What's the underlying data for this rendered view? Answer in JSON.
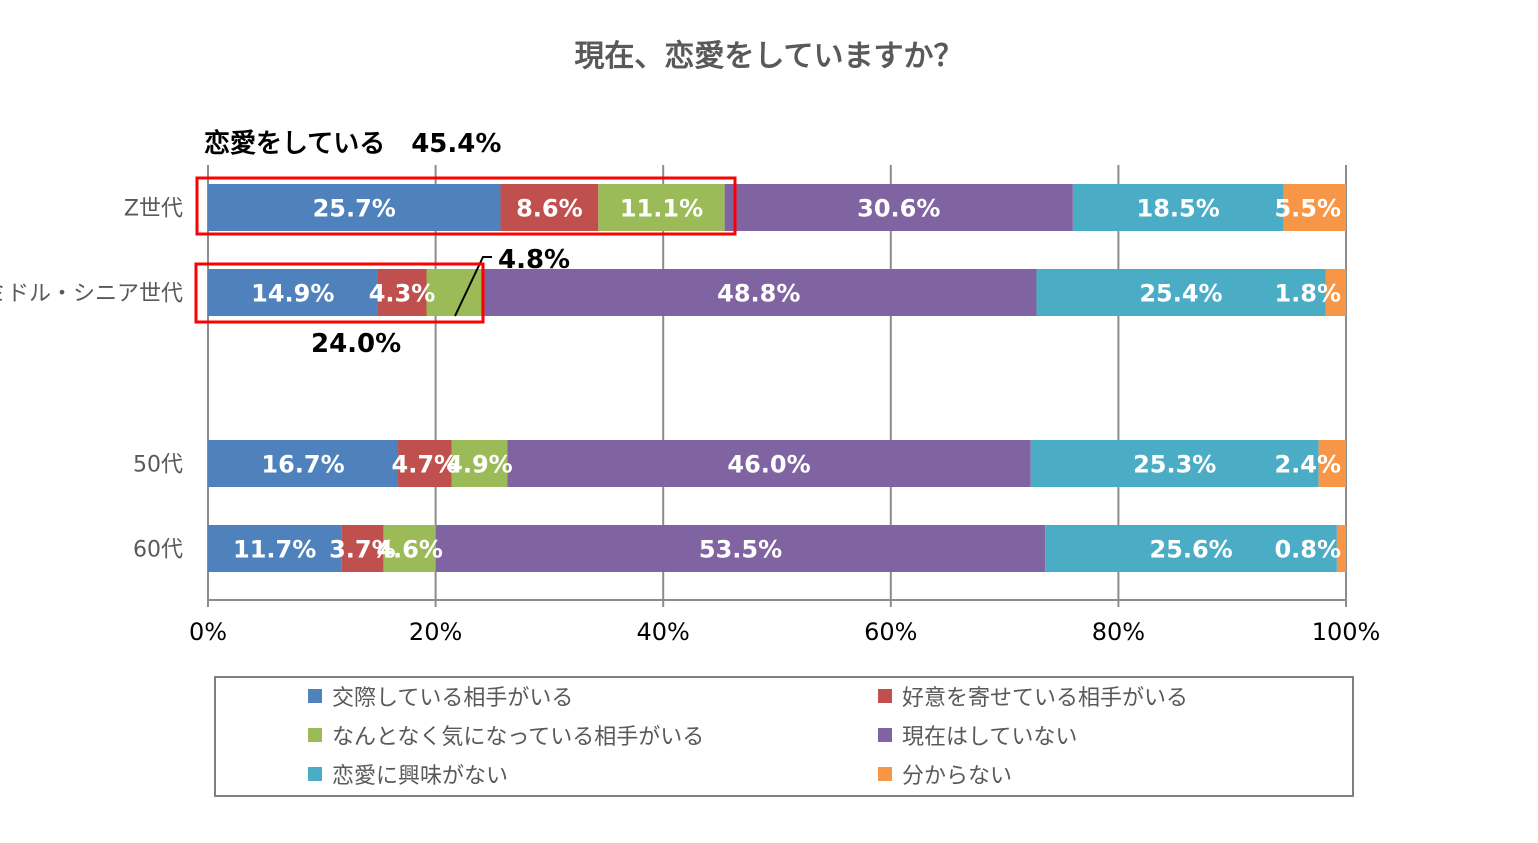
{
  "chart_data": {
    "type": "bar",
    "orientation": "horizontal",
    "stacked": "100%",
    "title": "現在、恋愛をしていますか？",
    "categories": [
      "Z世代",
      "ミドル・シニア世代",
      "50代",
      "60代"
    ],
    "series": [
      {
        "name": "交際している相手がいる",
        "color": "#4F81BD",
        "values": [
          25.7,
          14.9,
          16.7,
          11.7
        ]
      },
      {
        "name": "好意を寄せている相手がいる",
        "color": "#C0504D",
        "values": [
          8.6,
          4.3,
          4.7,
          3.7
        ]
      },
      {
        "name": "なんとなく気になっている相手がいる",
        "color": "#9BBB59",
        "values": [
          11.1,
          4.8,
          4.9,
          4.6
        ]
      },
      {
        "name": "現在はしていない",
        "color": "#8064A2",
        "values": [
          30.6,
          48.8,
          46.0,
          53.5
        ]
      },
      {
        "name": "恋愛に興味がない",
        "color": "#4BACC6",
        "values": [
          18.5,
          25.4,
          25.3,
          25.6
        ]
      },
      {
        "name": "分からない",
        "color": "#F79646",
        "values": [
          5.5,
          1.8,
          2.4,
          0.8
        ]
      }
    ],
    "xlim": [
      0,
      100
    ],
    "xticks": [
      "0%",
      "20%",
      "40%",
      "60%",
      "80%",
      "100%"
    ],
    "grid": true,
    "legend": "bottom",
    "annotations": {
      "z_total": "恋愛をしている　45.4%",
      "middle_total": "24.0%",
      "middle_green_callout": "4.8%",
      "highlight_color": "#FF0000"
    }
  }
}
